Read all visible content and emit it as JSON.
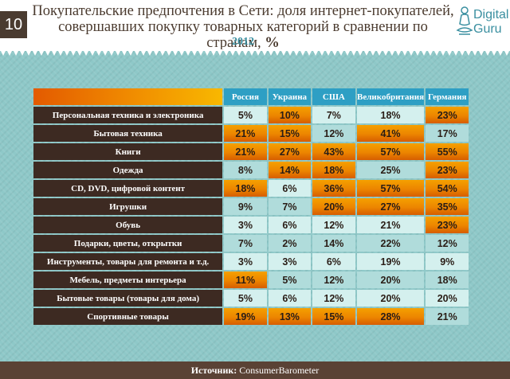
{
  "page_number": "10",
  "title": {
    "line1": "Покупательские предпочтения в Сети: доля интернет-покупателей,",
    "line2": "совершавших покупку товарных категорий в сравнении по странам,",
    "unit": "%"
  },
  "year": "2012",
  "logo": {
    "line1": "Digital",
    "line2": "Guru"
  },
  "colors": {
    "header_country": "#2e9fc4",
    "row_label_bg": "#3d2a22",
    "highlight": "#ec8500",
    "cell_a": "#b0dcdb",
    "cell_b": "#d4f0ee"
  },
  "chart_data": {
    "type": "table",
    "columns": [
      "Россия",
      "Украина",
      "США",
      "Великобритания",
      "Германия"
    ],
    "rows": [
      {
        "label": "Персональная техника и электроника",
        "values": [
          "5%",
          "10%",
          "7%",
          "18%",
          "23%"
        ],
        "highlight": [
          false,
          true,
          false,
          false,
          true
        ]
      },
      {
        "label": "Бытовая техника",
        "values": [
          "21%",
          "15%",
          "12%",
          "41%",
          "17%"
        ],
        "highlight": [
          true,
          true,
          false,
          true,
          false
        ]
      },
      {
        "label": "Книги",
        "values": [
          "21%",
          "27%",
          "43%",
          "57%",
          "55%"
        ],
        "highlight": [
          true,
          true,
          true,
          true,
          true
        ]
      },
      {
        "label": "Одежда",
        "values": [
          "8%",
          "14%",
          "18%",
          "25%",
          "23%"
        ],
        "highlight": [
          false,
          true,
          true,
          false,
          true
        ]
      },
      {
        "label": "CD, DVD, цифровой контент",
        "values": [
          "18%",
          "6%",
          "36%",
          "57%",
          "54%"
        ],
        "highlight": [
          true,
          false,
          true,
          true,
          true
        ]
      },
      {
        "label": "Игрушки",
        "values": [
          "9%",
          "7%",
          "20%",
          "27%",
          "35%"
        ],
        "highlight": [
          false,
          false,
          true,
          true,
          true
        ]
      },
      {
        "label": "Обувь",
        "values": [
          "3%",
          "6%",
          "12%",
          "21%",
          "23%"
        ],
        "highlight": [
          false,
          false,
          false,
          false,
          true
        ]
      },
      {
        "label": "Подарки, цветы, открытки",
        "values": [
          "7%",
          "2%",
          "14%",
          "22%",
          "12%"
        ],
        "highlight": [
          false,
          false,
          false,
          false,
          false
        ]
      },
      {
        "label": "Инструменты, товары для ремонта и т.д.",
        "values": [
          "3%",
          "3%",
          "6%",
          "19%",
          "9%"
        ],
        "highlight": [
          false,
          false,
          false,
          false,
          false
        ]
      },
      {
        "label": "Мебель, предметы интерьера",
        "values": [
          "11%",
          "5%",
          "12%",
          "20%",
          "18%"
        ],
        "highlight": [
          true,
          false,
          false,
          false,
          false
        ]
      },
      {
        "label": "Бытовые товары (товары для дома)",
        "values": [
          "5%",
          "6%",
          "12%",
          "20%",
          "20%"
        ],
        "highlight": [
          false,
          false,
          false,
          false,
          false
        ]
      },
      {
        "label": "Спортивные товары",
        "values": [
          "19%",
          "13%",
          "15%",
          "28%",
          "21%"
        ],
        "highlight": [
          true,
          true,
          true,
          true,
          false
        ]
      }
    ]
  },
  "source": {
    "label": "Источник:",
    "value": "ConsumerBarometer"
  }
}
